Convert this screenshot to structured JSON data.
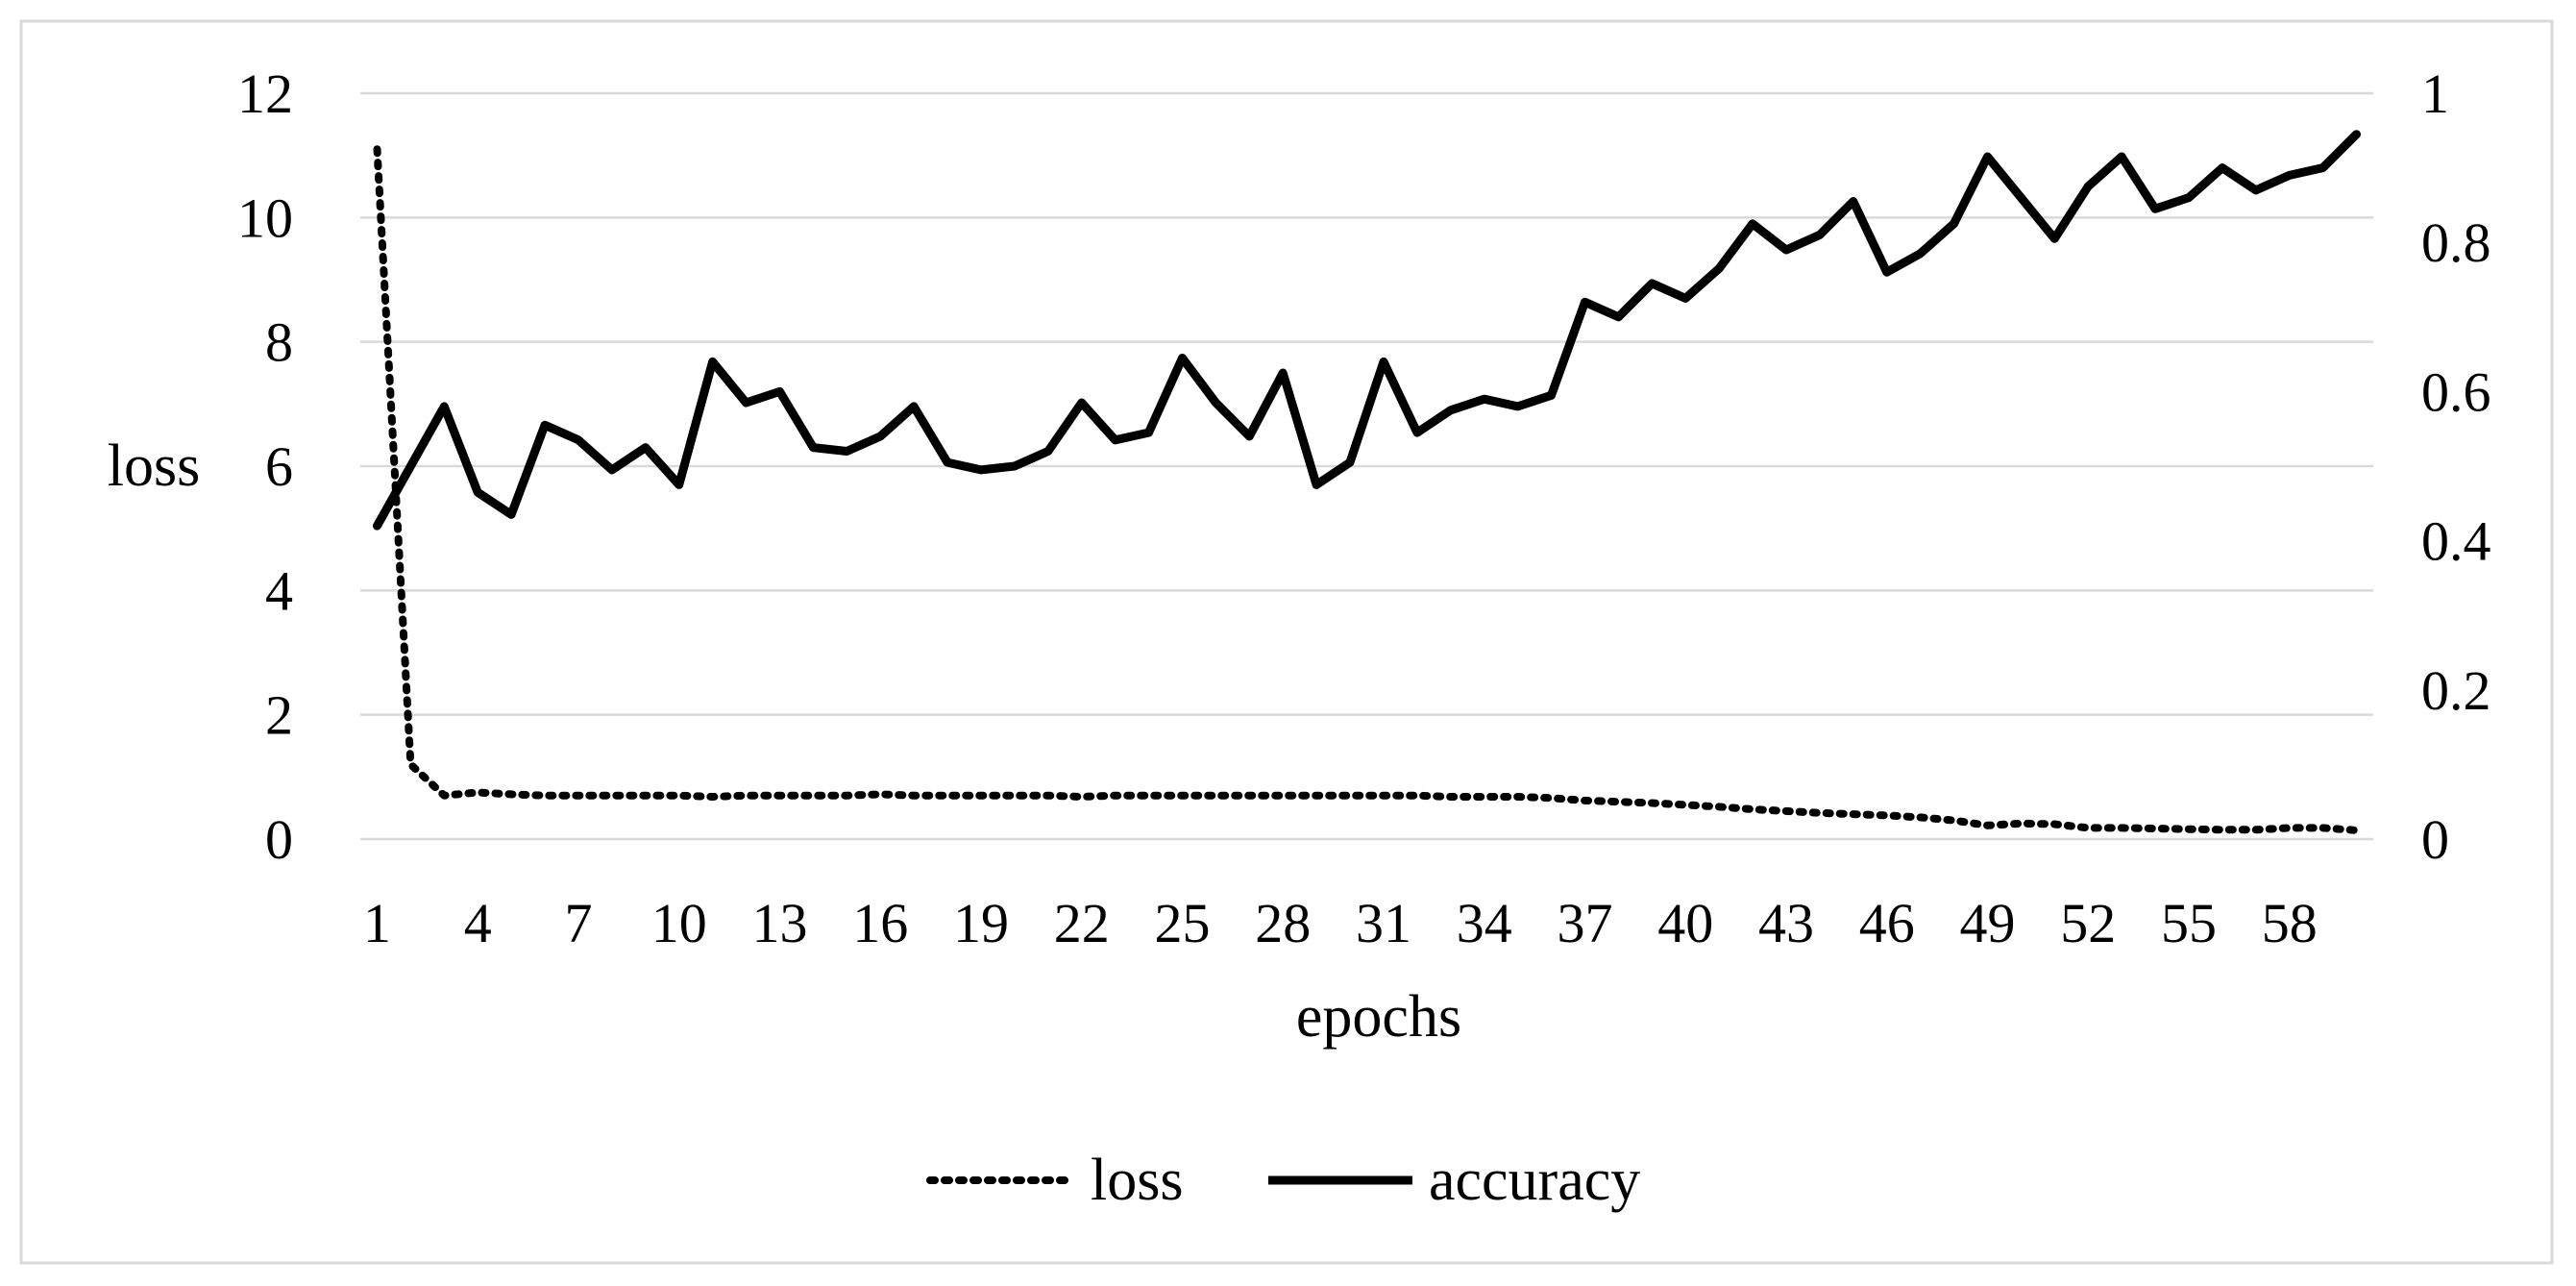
{
  "chart_data": {
    "type": "line",
    "x": [
      1,
      2,
      3,
      4,
      5,
      6,
      7,
      8,
      9,
      10,
      11,
      12,
      13,
      14,
      15,
      16,
      17,
      18,
      19,
      20,
      21,
      22,
      23,
      24,
      25,
      26,
      27,
      28,
      29,
      30,
      31,
      32,
      33,
      34,
      35,
      36,
      37,
      38,
      39,
      40,
      41,
      42,
      43,
      44,
      45,
      46,
      47,
      48,
      49,
      50,
      51,
      52,
      53,
      54,
      55,
      56,
      57,
      58,
      59,
      60
    ],
    "x_tick_labels": [
      "1",
      "4",
      "7",
      "10",
      "13",
      "16",
      "19",
      "22",
      "25",
      "28",
      "31",
      "34",
      "37",
      "40",
      "43",
      "46",
      "49",
      "52",
      "55",
      "58"
    ],
    "xlabel": "epochs",
    "ylabel_left": "loss",
    "ylim_left": [
      0,
      12
    ],
    "yticks_left": [
      "0",
      "2",
      "4",
      "6",
      "8",
      "10",
      "12"
    ],
    "ylim_right": [
      0,
      1
    ],
    "yticks_right": [
      "0",
      "0.2",
      "0.4",
      "0.6",
      "0.8",
      "1"
    ],
    "grid": "horizontal",
    "legend_position": "bottom",
    "series": [
      {
        "name": "loss",
        "axis": "left",
        "style": "dotted",
        "color": "#000000",
        "values": [
          11.1,
          1.2,
          0.7,
          0.75,
          0.72,
          0.7,
          0.7,
          0.7,
          0.7,
          0.7,
          0.68,
          0.7,
          0.7,
          0.7,
          0.7,
          0.72,
          0.7,
          0.7,
          0.7,
          0.7,
          0.7,
          0.68,
          0.7,
          0.7,
          0.7,
          0.7,
          0.7,
          0.7,
          0.7,
          0.7,
          0.7,
          0.7,
          0.68,
          0.68,
          0.68,
          0.66,
          0.62,
          0.6,
          0.58,
          0.55,
          0.52,
          0.48,
          0.45,
          0.42,
          0.4,
          0.38,
          0.35,
          0.3,
          0.22,
          0.25,
          0.24,
          0.18,
          0.18,
          0.17,
          0.16,
          0.15,
          0.15,
          0.18,
          0.18,
          0.14
        ]
      },
      {
        "name": "accuracy",
        "axis": "right",
        "style": "solid",
        "color": "#000000",
        "values": [
          0.42,
          0.5,
          0.58,
          0.465,
          0.435,
          0.555,
          0.535,
          0.495,
          0.525,
          0.475,
          0.64,
          0.585,
          0.6,
          0.525,
          0.52,
          0.54,
          0.58,
          0.505,
          0.495,
          0.5,
          0.52,
          0.585,
          0.535,
          0.545,
          0.645,
          0.585,
          0.54,
          0.625,
          0.475,
          0.505,
          0.64,
          0.545,
          0.575,
          0.59,
          0.58,
          0.595,
          0.72,
          0.7,
          0.745,
          0.725,
          0.765,
          0.825,
          0.79,
          0.81,
          0.855,
          0.76,
          0.785,
          0.825,
          0.915,
          0.86,
          0.805,
          0.875,
          0.915,
          0.845,
          0.86,
          0.9,
          0.87,
          0.89,
          0.9,
          0.945
        ]
      }
    ]
  }
}
